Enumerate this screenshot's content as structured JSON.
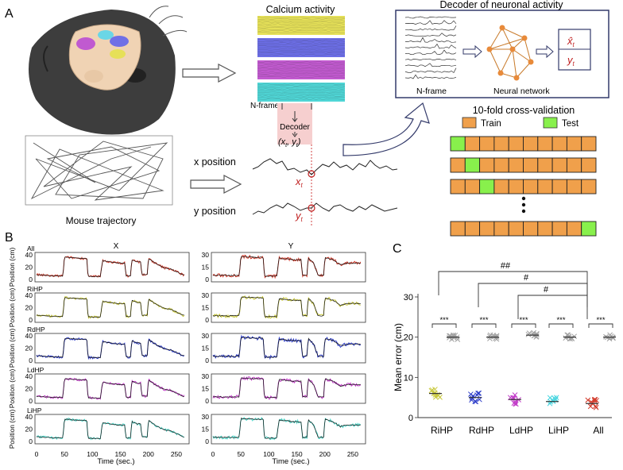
{
  "panelA": {
    "letter": "A",
    "calcium_title": "Calcium activity",
    "calcium_colors": [
      "#e6e158",
      "#6c6ee6",
      "#c25ad0",
      "#4fd6d6"
    ],
    "nframe_label": "N-frame",
    "decoder_label": "Decoder",
    "decoder_output": "(x",
    "decoder_output_t1": "t",
    "decoder_output_mid": ", y",
    "decoder_output_t2": "t",
    "decoder_output_end": ")",
    "decoder_box_title": "Decoder of neuronal activity",
    "decoder_nframe": "N-frame",
    "neural_network": "Neural network",
    "xhat": "x̂",
    "xhat_sub": "t",
    "yt": "y",
    "yt_sub": "t",
    "trajectory_label": "Mouse trajectory",
    "x_position": "x position",
    "y_position": "y position",
    "xt": "x",
    "xt_sub": "t",
    "ytt": "y",
    "ytt_sub": "t",
    "cv_title": "10-fold cross-validation",
    "train_label": "Train",
    "test_label": "Test",
    "train_color": "#f0a04b",
    "test_color": "#88f04c",
    "cv_test_index": [
      0,
      1,
      2,
      9
    ]
  },
  "panelB": {
    "letter": "B",
    "col_x": "X",
    "col_y": "Y",
    "rows": [
      "All",
      "RiHP",
      "RdHP",
      "LdHP",
      "LiHP"
    ],
    "row_colors": [
      "#d23a2a",
      "#c8c83a",
      "#2a3ac8",
      "#c23ac8",
      "#4ad6c8"
    ],
    "ylabel": "Position (cm)",
    "x_yticks": [
      "0",
      "20",
      "40"
    ],
    "y_yticks": [
      "0",
      "15",
      "30"
    ],
    "xticks": [
      "0",
      "50",
      "100",
      "150",
      "200",
      "250"
    ],
    "xlabel": "Time (sec.)"
  },
  "panelC": {
    "letter": "C",
    "ylabel": "Mean error (cm)",
    "yticks": [
      "0",
      "10",
      "20",
      "30"
    ],
    "groups": [
      "RiHP",
      "RdHP",
      "LdHP",
      "LiHP",
      "All"
    ],
    "group_colors": [
      "#c8c83a",
      "#2a3ac8",
      "#c23ac8",
      "#4ad6e0",
      "#d23a2a"
    ],
    "shuffle_color": "#a0a0a0",
    "stars": "***",
    "hash2": "##",
    "hash1": "#"
  },
  "chart_data": {
    "type": "scatter",
    "categories": [
      "RiHP",
      "RdHP",
      "LdHP",
      "LiHP",
      "All"
    ],
    "ylabel": "Mean error (cm)",
    "ylim": [
      0,
      30
    ],
    "series": [
      {
        "values": [
          6,
          5,
          4.5,
          4,
          3.5
        ]
      },
      {
        "values": [
          20,
          20,
          20.5,
          20,
          20
        ]
      }
    ]
  }
}
